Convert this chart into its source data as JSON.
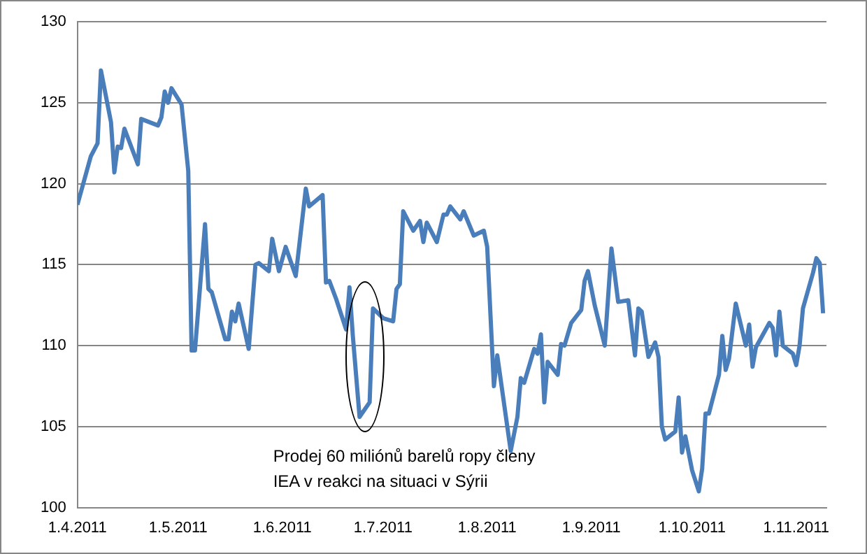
{
  "chart_data": {
    "type": "line",
    "xlim": [
      "2011-04-01",
      "2011-11-10"
    ],
    "ylim": [
      100,
      130
    ],
    "yticks": [
      100,
      105,
      110,
      115,
      120,
      125,
      130
    ],
    "xticks": [
      {
        "value": "2011-04-01",
        "label": "1.4.2011"
      },
      {
        "value": "2011-05-01",
        "label": "1.5.2011"
      },
      {
        "value": "2011-06-01",
        "label": "1.6.2011"
      },
      {
        "value": "2011-07-01",
        "label": "1.7.2011"
      },
      {
        "value": "2011-08-01",
        "label": "1.8.2011"
      },
      {
        "value": "2011-09-01",
        "label": "1.9.2011"
      },
      {
        "value": "2011-10-01",
        "label": "1.10.2011"
      },
      {
        "value": "2011-11-01",
        "label": "1.11.2011"
      }
    ],
    "grid": "y",
    "legend": false,
    "marker": "none",
    "line_style": "solid",
    "x": [
      "2011-04-01",
      "2011-04-05",
      "2011-04-07",
      "2011-04-08",
      "2011-04-11",
      "2011-04-12",
      "2011-04-13",
      "2011-04-14",
      "2011-04-15",
      "2011-04-19",
      "2011-04-20",
      "2011-04-25",
      "2011-04-26",
      "2011-04-27",
      "2011-04-28",
      "2011-04-29",
      "2011-05-02",
      "2011-05-04",
      "2011-05-05",
      "2011-05-06",
      "2011-05-09",
      "2011-05-10",
      "2011-05-11",
      "2011-05-15",
      "2011-05-16",
      "2011-05-17",
      "2011-05-18",
      "2011-05-19",
      "2011-05-22",
      "2011-05-24",
      "2011-05-25",
      "2011-05-28",
      "2011-05-29",
      "2011-05-31",
      "2011-06-02",
      "2011-06-05",
      "2011-06-08",
      "2011-06-09",
      "2011-06-13",
      "2011-06-14",
      "2011-06-15",
      "2011-06-17",
      "2011-06-20",
      "2011-06-21",
      "2011-06-22",
      "2011-06-24",
      "2011-06-27",
      "2011-06-28",
      "2011-07-01",
      "2011-07-04",
      "2011-07-05",
      "2011-07-06",
      "2011-07-07",
      "2011-07-10",
      "2011-07-12",
      "2011-07-13",
      "2011-07-14",
      "2011-07-17",
      "2011-07-19",
      "2011-07-20",
      "2011-07-21",
      "2011-07-24",
      "2011-07-25",
      "2011-07-28",
      "2011-07-31",
      "2011-08-01",
      "2011-08-03",
      "2011-08-04",
      "2011-08-08",
      "2011-08-10",
      "2011-08-11",
      "2011-08-12",
      "2011-08-15",
      "2011-08-16",
      "2011-08-17",
      "2011-08-18",
      "2011-08-19",
      "2011-08-22",
      "2011-08-23",
      "2011-08-24",
      "2011-08-26",
      "2011-08-29",
      "2011-08-30",
      "2011-08-31",
      "2011-09-02",
      "2011-09-05",
      "2011-09-07",
      "2011-09-09",
      "2011-09-12",
      "2011-09-14",
      "2011-09-15",
      "2011-09-16",
      "2011-09-18",
      "2011-09-20",
      "2011-09-21",
      "2011-09-22",
      "2011-09-23",
      "2011-09-26",
      "2011-09-27",
      "2011-09-28",
      "2011-09-29",
      "2011-10-01",
      "2011-10-03",
      "2011-10-04",
      "2011-10-05",
      "2011-10-06",
      "2011-10-09",
      "2011-10-10",
      "2011-10-11",
      "2011-10-12",
      "2011-10-14",
      "2011-10-17",
      "2011-10-18",
      "2011-10-19",
      "2011-10-20",
      "2011-10-24",
      "2011-10-25",
      "2011-10-26",
      "2011-10-27",
      "2011-10-28",
      "2011-10-31",
      "2011-11-01",
      "2011-11-02",
      "2011-11-03",
      "2011-11-06",
      "2011-11-07",
      "2011-11-08",
      "2011-11-09"
    ],
    "series": [
      {
        "color": "#4a7ebb",
        "values": [
          118.7,
          121.7,
          122.5,
          127.0,
          123.8,
          120.7,
          122.3,
          122.2,
          123.4,
          121.2,
          124.0,
          123.6,
          124.1,
          125.7,
          125.0,
          125.9,
          124.9,
          120.8,
          109.7,
          109.7,
          117.5,
          113.5,
          113.3,
          110.4,
          110.4,
          112.1,
          111.5,
          112.6,
          109.8,
          115.0,
          115.1,
          114.6,
          116.6,
          114.6,
          116.1,
          114.3,
          119.7,
          118.6,
          119.3,
          113.9,
          114.0,
          112.9,
          111.0,
          113.6,
          110.6,
          105.6,
          106.5,
          112.3,
          111.7,
          111.5,
          113.5,
          113.8,
          118.3,
          117.1,
          117.7,
          116.4,
          117.6,
          116.4,
          118.1,
          118.1,
          118.6,
          117.8,
          118.3,
          116.8,
          117.1,
          116.1,
          107.5,
          109.4,
          103.5,
          105.6,
          108.0,
          107.7,
          109.8,
          109.5,
          110.7,
          106.5,
          109.0,
          108.2,
          110.1,
          110.0,
          111.4,
          112.2,
          114.0,
          114.6,
          112.5,
          110.0,
          116.0,
          112.7,
          112.8,
          109.4,
          112.3,
          112.1,
          109.3,
          110.2,
          109.3,
          105.0,
          104.2,
          104.7,
          106.8,
          103.4,
          104.4,
          102.3,
          101.0,
          102.4,
          105.8,
          105.8,
          108.2,
          110.6,
          108.5,
          109.2,
          112.6,
          110.0,
          111.3,
          108.7,
          109.9,
          111.4,
          111.1,
          109.4,
          112.1,
          110.0,
          109.5,
          108.8,
          110.0,
          112.3,
          114.5,
          115.4,
          115.1,
          112.0
        ]
      }
    ],
    "annotations": [
      "Prodej 60 miliónů barelů ropy členy\nIEA v reakci na situaci v Sýrii"
    ]
  }
}
